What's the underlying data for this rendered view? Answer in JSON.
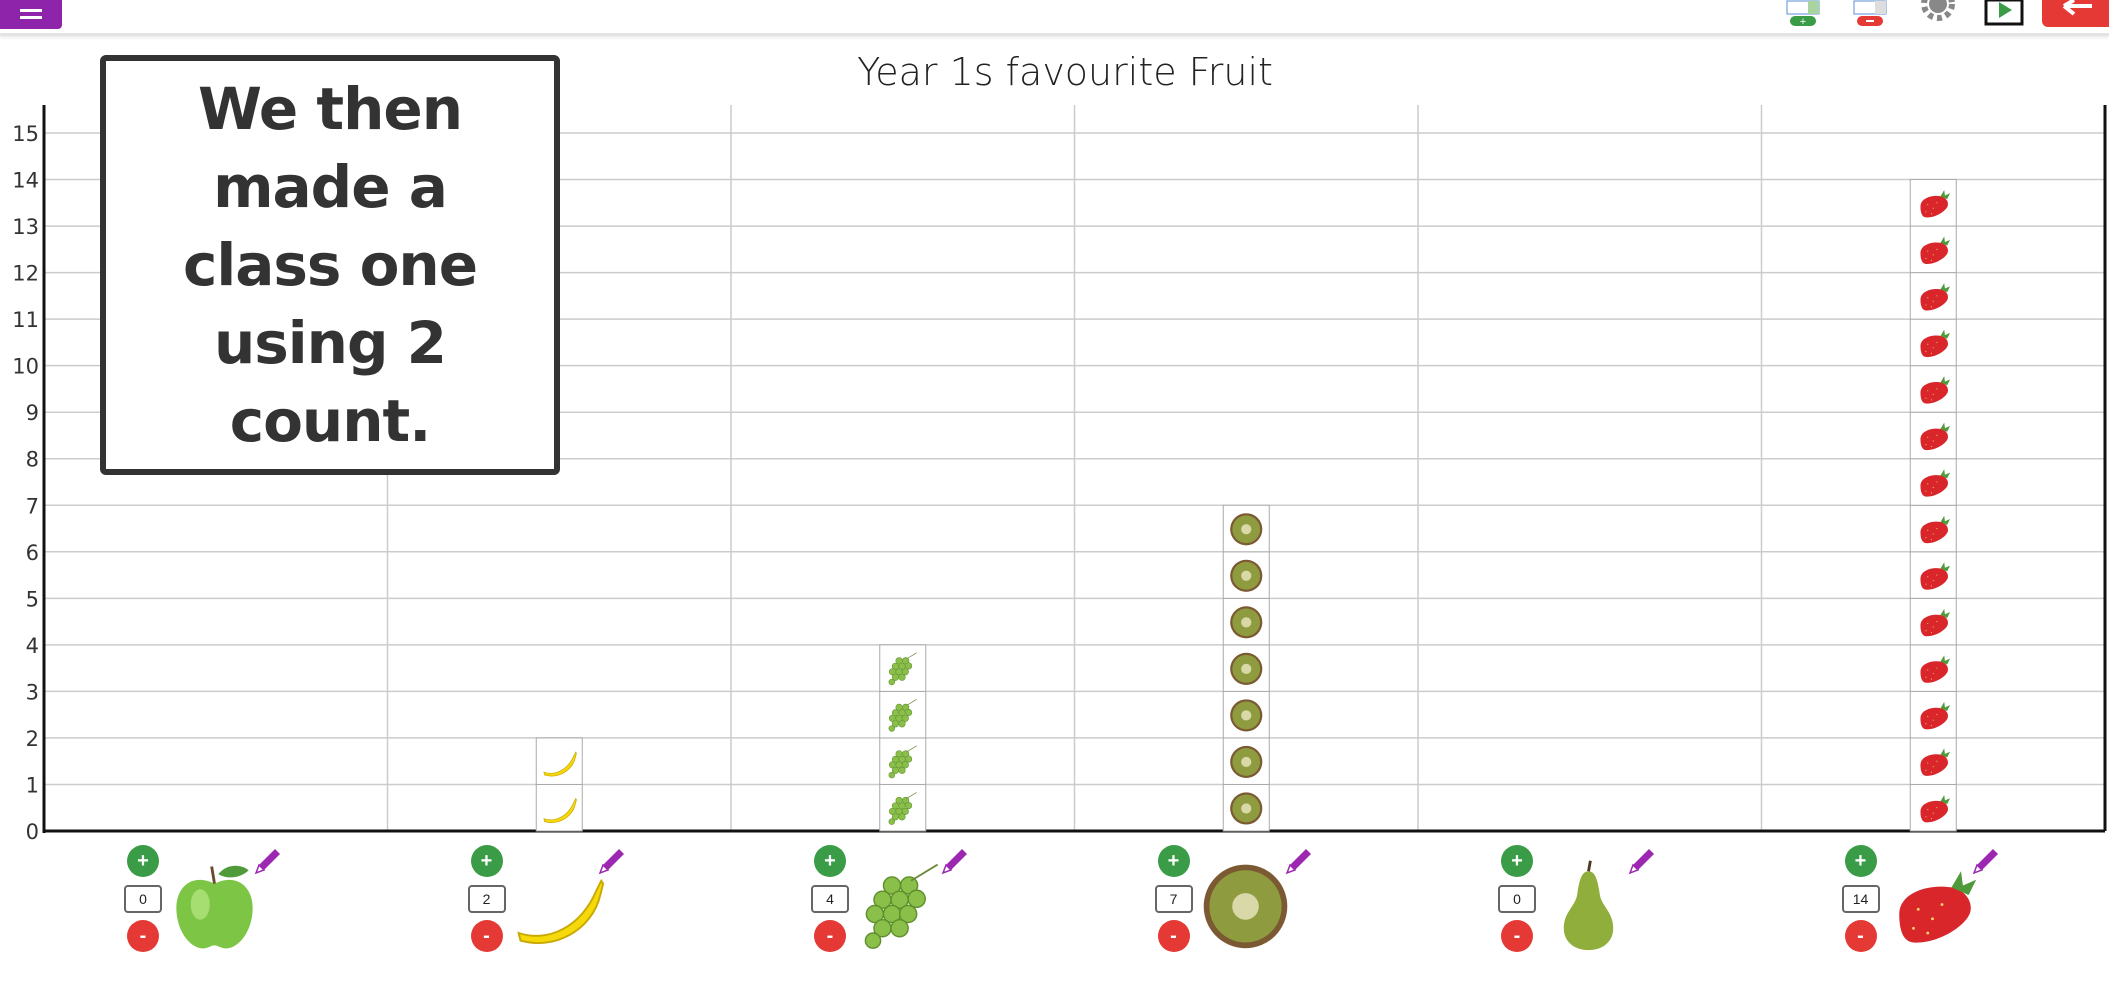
{
  "toolbar": {
    "menu_icon": "hamburger-icon",
    "icons": [
      "add-column-icon",
      "remove-column-icon",
      "gear-icon",
      "film-play-icon",
      "back-arrow-icon"
    ]
  },
  "note": "We then made a class one using 2 count.",
  "chart_data": {
    "type": "bar",
    "title": "Year 1s favourite Fruit",
    "categories": [
      "apple",
      "banana",
      "grapes",
      "kiwi",
      "pear",
      "strawberry"
    ],
    "values": [
      0,
      2,
      4,
      7,
      0,
      14
    ],
    "ylim": [
      0,
      15
    ],
    "yticks": [
      "0",
      "1",
      "2",
      "3",
      "4",
      "5",
      "6",
      "7",
      "8",
      "9",
      "10",
      "11",
      "12",
      "13",
      "14",
      "15"
    ],
    "grid": true,
    "colors": {
      "plus": "#3a9c47",
      "minus": "#e53935",
      "pencil": "#9c27b0",
      "menu": "#8e24aa"
    }
  },
  "controls": {
    "plus": "+",
    "minus": "-",
    "values": [
      "0",
      "2",
      "4",
      "7",
      "0",
      "14"
    ]
  }
}
